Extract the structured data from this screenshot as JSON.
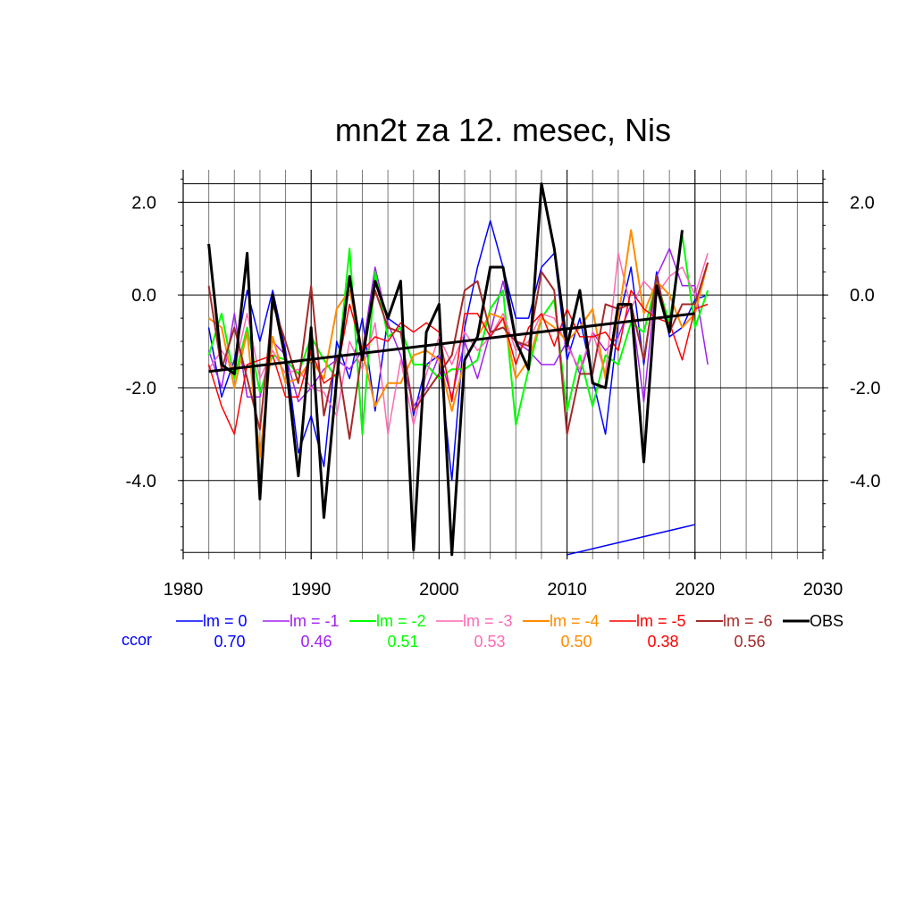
{
  "chart_data": {
    "type": "line",
    "title": "mn2t za 12. mesec, Nis",
    "xlabel": "",
    "ylabel": "",
    "xlim": [
      1980,
      2030
    ],
    "ylim": [
      -5.7,
      2.7
    ],
    "xticks": [
      1980,
      1990,
      2000,
      2010,
      2020,
      2030
    ],
    "xtick_labels": [
      "1980",
      "1990",
      "2000",
      "2010",
      "2020",
      "2030"
    ],
    "yticks": [
      2.0,
      0.0,
      -2.0,
      -4.0
    ],
    "ytick_labels": [
      "2.0",
      "0.0",
      "-2.0",
      "-4.0"
    ],
    "grid": true,
    "legend_position": "bottom",
    "ccor_label": "ccor",
    "x": [
      1982,
      1983,
      1984,
      1985,
      1986,
      1987,
      1988,
      1989,
      1990,
      1991,
      1992,
      1993,
      1994,
      1995,
      1996,
      1997,
      1998,
      1999,
      2000,
      2001,
      2002,
      2003,
      2004,
      2005,
      2006,
      2007,
      2008,
      2009,
      2010,
      2011,
      2012,
      2013,
      2014,
      2015,
      2016,
      2017,
      2018,
      2019,
      2020,
      2021
    ],
    "series": [
      {
        "name": "lm = 0",
        "color": "#0000ff",
        "width": 1.5,
        "ccor": "0.70",
        "values": [
          -0.7,
          -2.2,
          -1.4,
          0.1,
          -1.0,
          0.1,
          -1.2,
          -3.4,
          -2.6,
          -3.7,
          -1.0,
          -1.8,
          -0.5,
          -2.5,
          -0.5,
          -0.7,
          -2.6,
          -1.5,
          -1.3,
          -4.0,
          -0.7,
          0.6,
          1.6,
          0.6,
          -0.5,
          -0.5,
          0.6,
          0.9,
          -1.4,
          -0.5,
          -1.8,
          -3.0,
          -0.6,
          0.6,
          -1.5,
          0.5,
          -0.9,
          -0.7,
          -0.1,
          0.0
        ]
      },
      {
        "name": "lm = -1",
        "color": "#a020f0",
        "width": 1.5,
        "ccor": "0.46",
        "values": [
          -1.2,
          -2.0,
          -0.4,
          -2.2,
          -2.2,
          -1.0,
          -1.3,
          -2.3,
          -2.0,
          -1.6,
          -1.4,
          -1.6,
          -1.2,
          0.6,
          -0.6,
          -1.3,
          -2.4,
          -2.0,
          -1.3,
          -2.2,
          -1.0,
          -1.8,
          -0.8,
          0.3,
          -1.0,
          -1.2,
          -1.5,
          -1.5,
          -1.0,
          -1.7,
          -0.8,
          -1.2,
          -0.9,
          -0.2,
          -2.3,
          0.4,
          1.0,
          0.2,
          0.2,
          -1.5
        ]
      },
      {
        "name": "lm = -2",
        "color": "#00ff00",
        "width": 2,
        "ccor": "0.51",
        "values": [
          -1.3,
          -0.4,
          -1.8,
          -0.7,
          -2.1,
          -1.3,
          -1.4,
          -1.7,
          -0.9,
          -1.4,
          -1.8,
          1.0,
          -3.0,
          0.5,
          -0.9,
          -0.7,
          -1.5,
          -1.5,
          -1.8,
          -1.6,
          -1.6,
          -1.4,
          -0.3,
          0.1,
          -2.8,
          -1.6,
          -0.5,
          -0.1,
          -2.5,
          -1.3,
          -2.4,
          -1.3,
          -1.5,
          -0.6,
          -0.8,
          0.3,
          -0.6,
          1.3,
          -0.7,
          0.1
        ]
      },
      {
        "name": "lm = -3",
        "color": "#ff69b4",
        "width": 1.5,
        "ccor": "0.53",
        "values": [
          -1.6,
          -1.2,
          -1.6,
          -0.4,
          -1.8,
          -1.2,
          -1.7,
          -1.6,
          -2.0,
          -2.1,
          -2.6,
          -1.0,
          -1.6,
          -0.6,
          -3.0,
          -1.4,
          -2.8,
          -1.7,
          -0.9,
          -1.5,
          -0.8,
          -1.2,
          -0.9,
          -0.4,
          -1.2,
          -1.0,
          -0.4,
          -0.5,
          -1.1,
          -1.6,
          -0.8,
          -1.7,
          0.9,
          -0.3,
          0.3,
          0.0,
          0.4,
          0.6,
          0.0,
          0.9
        ]
      },
      {
        "name": "lm = -4",
        "color": "#ff8c00",
        "width": 2,
        "ccor": "0.50",
        "values": [
          -0.5,
          -0.7,
          -2.0,
          -0.8,
          -3.5,
          -0.9,
          -1.9,
          -1.8,
          -1.4,
          -1.8,
          -0.3,
          0.1,
          -1.2,
          -2.4,
          -1.9,
          -1.9,
          -1.3,
          -1.2,
          -1.4,
          -2.5,
          -1.4,
          -0.9,
          -0.4,
          -0.5,
          -1.8,
          -1.4,
          -0.5,
          -0.7,
          -1.0,
          -0.7,
          -0.3,
          -1.8,
          -0.5,
          1.4,
          -0.4,
          0.3,
          0.0,
          -0.7,
          -0.4,
          0.7
        ]
      },
      {
        "name": "lm = -5",
        "color": "#ff0000",
        "width": 1.5,
        "ccor": "0.38",
        "values": [
          -1.5,
          -2.4,
          -3.0,
          -1.5,
          -1.4,
          -1.3,
          -2.2,
          -2.2,
          -1.2,
          -1.9,
          -1.7,
          -0.2,
          -1.2,
          -0.9,
          -1.0,
          -0.6,
          -0.8,
          -0.6,
          -0.8,
          -2.3,
          -0.4,
          -0.4,
          -0.9,
          -0.5,
          -1.5,
          -0.7,
          -0.4,
          -1.1,
          -0.3,
          -0.9,
          -0.9,
          -0.8,
          -1.2,
          0.1,
          -0.3,
          -0.5,
          -0.6,
          -1.4,
          -0.3,
          -0.2
        ]
      },
      {
        "name": "lm = -6",
        "color": "#a52a2a",
        "width": 2,
        "ccor": "0.56",
        "values": [
          0.2,
          -1.6,
          -0.7,
          -1.8,
          -2.9,
          -0.2,
          -1.0,
          -1.9,
          0.2,
          -2.6,
          -1.3,
          -3.1,
          -1.2,
          0.1,
          -0.7,
          -0.8,
          -2.5,
          -2.1,
          -1.7,
          -1.3,
          0.1,
          0.3,
          -0.8,
          -0.7,
          -1.0,
          -1.1,
          0.5,
          0.1,
          -3.0,
          -1.7,
          -1.7,
          -0.2,
          -0.3,
          -0.2,
          -1.4,
          0.4,
          -0.8,
          -0.2,
          -0.2,
          0.7
        ]
      },
      {
        "name": "OBS",
        "color": "#000000",
        "width": 3,
        "ccor": "",
        "values": [
          1.1,
          -1.5,
          -1.7,
          0.9,
          -4.4,
          0.0,
          -1.4,
          -3.9,
          -0.7,
          -4.8,
          -1.8,
          0.4,
          -1.4,
          0.3,
          -0.5,
          0.3,
          -5.5,
          -0.8,
          -0.2,
          -5.6,
          -1.4,
          -0.9,
          0.6,
          0.6,
          -1.0,
          -1.6,
          2.4,
          1.0,
          -1.1,
          0.1,
          -1.9,
          -2.0,
          -0.2,
          -0.2,
          -3.6,
          0.2,
          -0.8,
          1.4,
          null,
          null
        ]
      }
    ],
    "trend": {
      "color": "#000000",
      "x": [
        1982,
        2020
      ],
      "y": [
        -1.65,
        -0.4
      ]
    },
    "blue_segment": {
      "color": "#0000ff",
      "x": [
        2010,
        2020
      ],
      "y": [
        -5.6,
        -4.95
      ]
    }
  }
}
